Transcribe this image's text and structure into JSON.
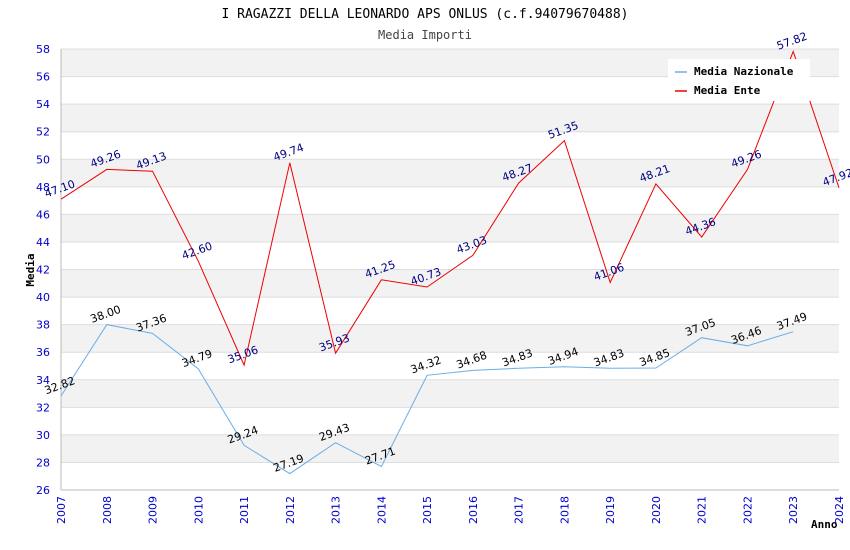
{
  "chart_data": {
    "type": "line",
    "title": "I RAGAZZI DELLA LEONARDO APS ONLUS (c.f.94079670488)",
    "subtitle": "Media Importi",
    "xlabel": "Anno",
    "ylabel": "Media",
    "ylim": [
      26,
      58
    ],
    "xlim": [
      2007,
      2024
    ],
    "y_ticks": [
      "26",
      "28",
      "30",
      "32",
      "34",
      "36",
      "38",
      "40",
      "42",
      "44",
      "46",
      "48",
      "50",
      "52",
      "54",
      "56",
      "58"
    ],
    "x_ticks": [
      "2007",
      "2008",
      "2009",
      "2010",
      "2011",
      "2012",
      "2013",
      "2014",
      "2015",
      "2016",
      "2017",
      "2018",
      "2019",
      "2020",
      "2021",
      "2022",
      "2023",
      "2024"
    ],
    "legend": {
      "position": "top-right"
    },
    "series": [
      {
        "name": "Media Nazionale",
        "color": "#6aaee8",
        "label_color": "#000000",
        "x": [
          2007,
          2008,
          2009,
          2010,
          2011,
          2012,
          2013,
          2014,
          2015,
          2016,
          2017,
          2018,
          2019,
          2020,
          2021,
          2022,
          2023
        ],
        "values": [
          32.82,
          38.0,
          37.36,
          34.79,
          29.24,
          27.19,
          29.43,
          27.71,
          34.32,
          34.68,
          34.83,
          34.94,
          34.83,
          34.85,
          37.05,
          36.46,
          37.49
        ],
        "labels": [
          "32.82",
          "38.00",
          "37.36",
          "34.79",
          "29.24",
          "27.19",
          "29.43",
          "27.71",
          "34.32",
          "34.68",
          "34.83",
          "34.94",
          "34.83",
          "34.85",
          "37.05",
          "36.46",
          "37.49"
        ]
      },
      {
        "name": "Media Ente",
        "color": "#ee0000",
        "label_color": "#000080",
        "x": [
          2007,
          2008,
          2009,
          2010,
          2011,
          2012,
          2013,
          2014,
          2015,
          2016,
          2017,
          2018,
          2019,
          2020,
          2021,
          2022,
          2023,
          2024
        ],
        "values": [
          47.1,
          49.26,
          49.13,
          42.6,
          35.06,
          49.74,
          35.93,
          41.25,
          40.73,
          43.03,
          48.27,
          51.35,
          41.06,
          48.21,
          44.36,
          49.26,
          57.82,
          47.92
        ],
        "labels": [
          "47.10",
          "49.26",
          "49.13",
          "42.60",
          "35.06",
          "49.74",
          "35.93",
          "41.25",
          "40.73",
          "43.03",
          "48.27",
          "51.35",
          "41.06",
          "48.21",
          "44.36",
          "49.26",
          "57.82",
          "47.92"
        ]
      }
    ]
  }
}
